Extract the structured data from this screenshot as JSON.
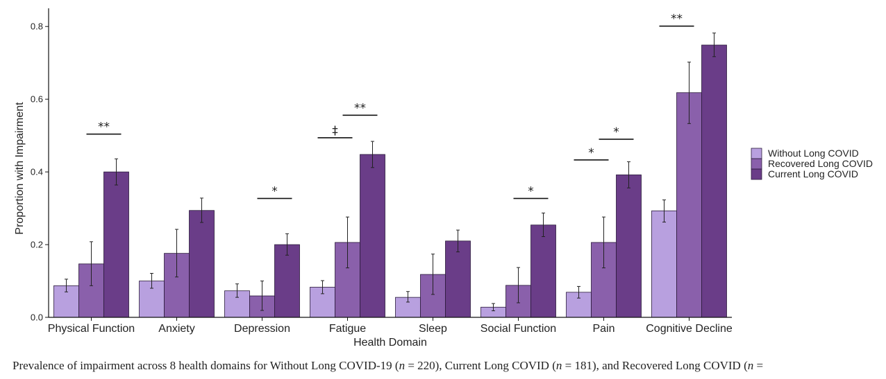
{
  "chart_data": {
    "type": "bar",
    "xlabel": "Health Domain",
    "ylabel": "Proportion with Impairment",
    "ylim": [
      0,
      0.85
    ],
    "yticks": [
      "0.0",
      "0.2",
      "0.4",
      "0.6",
      "0.8"
    ],
    "yticks_values": [
      0,
      0.2,
      0.4,
      0.6,
      0.8
    ],
    "grid": false,
    "legend_position": "right",
    "categories": [
      "Physical Function",
      "Anxiety",
      "Depression",
      "Fatigue",
      "Sleep",
      "Social Function",
      "Pain",
      "Cognitive Decline"
    ],
    "series": [
      {
        "name": "Without Long COVID",
        "color": "#b8a0df",
        "values": [
          0.087,
          0.1,
          0.073,
          0.083,
          0.055,
          0.028,
          0.069,
          0.293
        ],
        "err_low": [
          0.07,
          0.08,
          0.055,
          0.065,
          0.042,
          0.018,
          0.053,
          0.262
        ],
        "err_high": [
          0.105,
          0.121,
          0.092,
          0.101,
          0.071,
          0.038,
          0.085,
          0.323
        ]
      },
      {
        "name": "Recovered Long COVID",
        "color": "#8a60ab",
        "values": [
          0.147,
          0.176,
          0.059,
          0.206,
          0.118,
          0.088,
          0.206,
          0.618
        ],
        "err_low": [
          0.087,
          0.111,
          0.019,
          0.136,
          0.063,
          0.04,
          0.136,
          0.533
        ],
        "err_high": [
          0.208,
          0.242,
          0.1,
          0.276,
          0.174,
          0.137,
          0.276,
          0.702
        ]
      },
      {
        "name": "Current Long COVID",
        "color": "#6a3d88",
        "values": [
          0.4,
          0.294,
          0.2,
          0.448,
          0.21,
          0.254,
          0.392,
          0.749
        ],
        "err_low": [
          0.364,
          0.261,
          0.171,
          0.412,
          0.18,
          0.222,
          0.356,
          0.717
        ],
        "err_high": [
          0.436,
          0.328,
          0.23,
          0.484,
          0.24,
          0.287,
          0.428,
          0.782
        ]
      }
    ],
    "annotations": [
      {
        "category": 0,
        "from_series": 1,
        "to_series": 2,
        "label": "**",
        "y": 0.504
      },
      {
        "category": 2,
        "from_series": 1,
        "to_series": 2,
        "label": "*",
        "y": 0.327
      },
      {
        "category": 3,
        "from_series": 0,
        "to_series": 1,
        "label": "‡",
        "y": 0.494
      },
      {
        "category": 3,
        "from_series": 1,
        "to_series": 2,
        "label": "**",
        "y": 0.556
      },
      {
        "category": 5,
        "from_series": 1,
        "to_series": 2,
        "label": "*",
        "y": 0.327
      },
      {
        "category": 6,
        "from_series": 0,
        "to_series": 1,
        "label": "*",
        "y": 0.433
      },
      {
        "category": 6,
        "from_series": 1,
        "to_series": 2,
        "label": "*",
        "y": 0.49
      },
      {
        "category": 7,
        "from_series": 0,
        "to_series": 1,
        "label": "**",
        "y": 0.801
      }
    ]
  },
  "caption": {
    "p1": "Prevalence of impairment across 8 health domains for Without Long COVID-19 (",
    "n1_sym": "n",
    "n1_val": " = 220), Current Long COVID (",
    "n2_sym": "n",
    "n2_val": " = 181), and Recovered Long COVID (",
    "n3_sym": "n",
    "n3_val": " ="
  }
}
